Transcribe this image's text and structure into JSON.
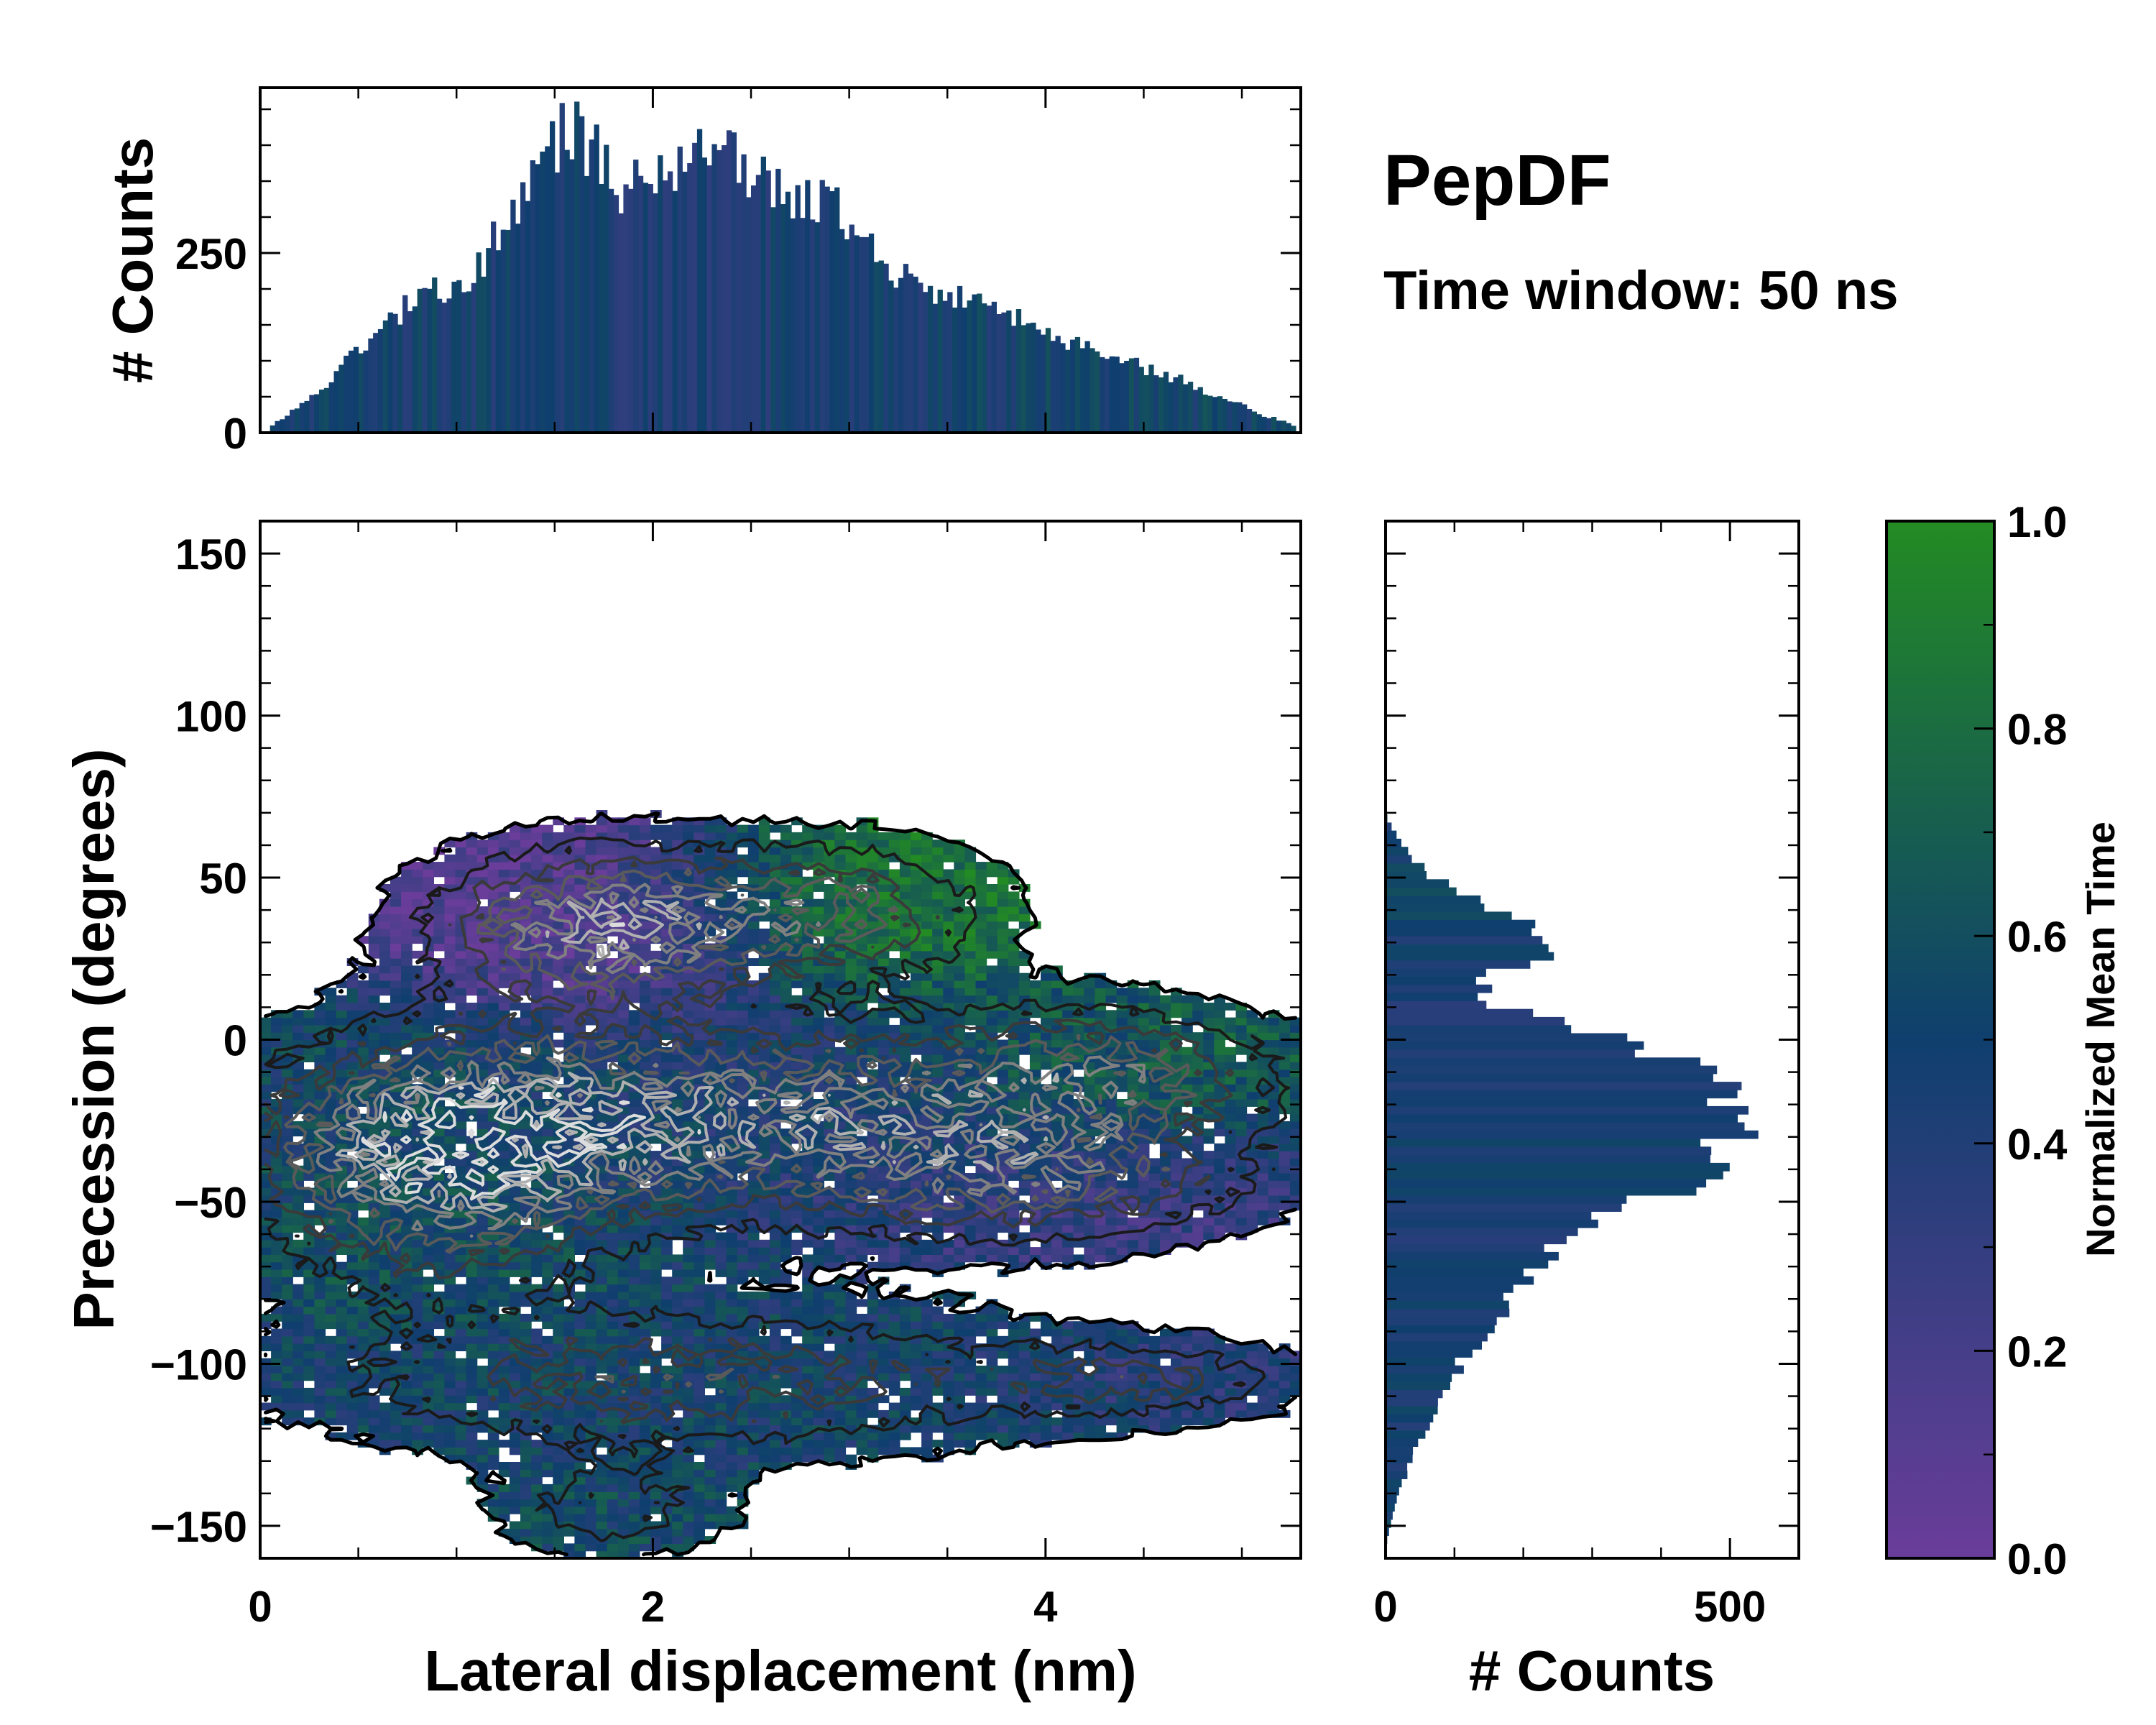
{
  "chart_data": {
    "type": "heatmap",
    "title": "PepDF",
    "subtitle": "Time window: 50 ns",
    "colors": {
      "low": "#6a3d9a",
      "mid": "#0f3f6e",
      "high": "#238b23"
    },
    "main": {
      "xlabel": "Lateral displacement (nm)",
      "ylabel": "Precession (degrees)",
      "xlim": [
        0,
        5.3
      ],
      "ylim": [
        -160,
        160
      ],
      "xticks": [
        0,
        2,
        4
      ],
      "yticks": [
        150,
        100,
        50,
        0,
        -50,
        -100,
        -150
      ],
      "xtick_labels": [
        "0",
        "2",
        "4"
      ],
      "ytick_labels": [
        "150",
        "100",
        "50",
        "0",
        "−50",
        "−100",
        "−150"
      ],
      "regions": [
        {
          "name": "upper-left lobe",
          "x": 1.7,
          "y": 35,
          "sx": 0.55,
          "sy": 16,
          "color": 0.1,
          "weight": 1.0
        },
        {
          "name": "upper-right lobe",
          "x": 2.9,
          "y": 40,
          "sx": 0.55,
          "sy": 14,
          "color": 0.85,
          "weight": 0.7
        },
        {
          "name": "central band",
          "x": 2.4,
          "y": -25,
          "sx": 1.4,
          "sy": 20,
          "color": 0.45,
          "weight": 1.0
        },
        {
          "name": "left band",
          "x": 0.9,
          "y": -40,
          "sx": 0.6,
          "sy": 25,
          "color": 0.6,
          "weight": 0.9
        },
        {
          "name": "right arm",
          "x": 4.3,
          "y": -10,
          "sx": 0.6,
          "sy": 14,
          "color": 0.75,
          "weight": 0.55
        },
        {
          "name": "right low arm",
          "x": 4.0,
          "y": -45,
          "sx": 0.7,
          "sy": 12,
          "color": 0.2,
          "weight": 0.5
        },
        {
          "name": "lower band",
          "x": 2.2,
          "y": -105,
          "sx": 1.3,
          "sy": 15,
          "color": 0.5,
          "weight": 0.6
        },
        {
          "name": "lower right arm",
          "x": 4.5,
          "y": -105,
          "sx": 0.5,
          "sy": 8,
          "color": 0.35,
          "weight": 0.45
        },
        {
          "name": "bottom tail",
          "x": 1.8,
          "y": -145,
          "sx": 0.4,
          "sy": 10,
          "color": 0.55,
          "weight": 0.4
        }
      ]
    },
    "top_histogram": {
      "ylabel": "# Counts",
      "ylim": [
        0,
        480
      ],
      "yticks": [
        0,
        250
      ],
      "ytick_labels": [
        "0",
        "250"
      ],
      "bin_width": 0.025,
      "profile_x": [
        0.05,
        0.3,
        0.6,
        0.9,
        1.1,
        1.3,
        1.5,
        1.6,
        1.75,
        1.85,
        2.0,
        2.2,
        2.3,
        2.6,
        2.9,
        3.2,
        3.6,
        4.0,
        4.4,
        4.8,
        5.1,
        5.25
      ],
      "profile_y": [
        10,
        60,
        150,
        200,
        230,
        320,
        410,
        420,
        370,
        330,
        360,
        380,
        390,
        340,
        320,
        230,
        180,
        140,
        100,
        60,
        25,
        10
      ]
    },
    "right_histogram": {
      "xlabel": "# Counts",
      "xlim": [
        0,
        600
      ],
      "xticks": [
        0,
        500
      ],
      "xtick_labels": [
        "0",
        "500"
      ],
      "bin_width": 2.5,
      "profile_y": [
        68,
        60,
        50,
        40,
        30,
        25,
        20,
        10,
        0,
        -10,
        -20,
        -25,
        -30,
        -35,
        -40,
        -45,
        -50,
        -60,
        -70,
        -80,
        -90,
        -100,
        -110,
        -120,
        -130,
        -140,
        -150,
        -158
      ],
      "profile_x": [
        0,
        20,
        60,
        150,
        250,
        270,
        140,
        150,
        320,
        460,
        480,
        530,
        510,
        470,
        460,
        500,
        380,
        280,
        220,
        180,
        150,
        110,
        90,
        60,
        40,
        20,
        8,
        0
      ]
    },
    "colorbar": {
      "label": "Normalized Mean Time",
      "lim": [
        0,
        1
      ],
      "ticks": [
        0,
        0.2,
        0.4,
        0.6,
        0.8,
        1.0
      ],
      "tick_labels": [
        "0.0",
        "0.2",
        "0.4",
        "0.6",
        "0.8",
        "1.0"
      ]
    }
  }
}
